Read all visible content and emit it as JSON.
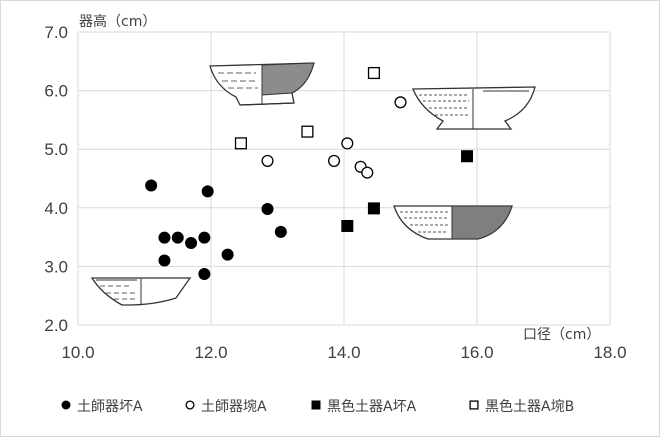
{
  "chart_data": {
    "type": "scatter",
    "xlabel": "口径（cm）",
    "ylabel": "器高（cm）",
    "xlim": [
      10.0,
      18.0
    ],
    "ylim": [
      2.0,
      7.0
    ],
    "x_ticks": [
      "10.0",
      "12.0",
      "14.0",
      "16.0",
      "18.0"
    ],
    "y_ticks": [
      "2.0",
      "3.0",
      "4.0",
      "5.0",
      "6.0",
      "7.0"
    ],
    "grid": true,
    "legend_position": "bottom",
    "series": [
      {
        "name": "土師器坏A",
        "marker": "filled-circle",
        "color": "#000000",
        "points": [
          [
            11.1,
            4.38
          ],
          [
            11.3,
            3.49
          ],
          [
            11.5,
            3.49
          ],
          [
            11.7,
            3.4
          ],
          [
            11.9,
            3.49
          ],
          [
            11.9,
            2.87
          ],
          [
            11.3,
            3.1
          ],
          [
            11.95,
            4.28
          ],
          [
            12.25,
            3.2
          ],
          [
            12.85,
            3.98
          ],
          [
            13.05,
            3.59
          ]
        ]
      },
      {
        "name": "土師器埦A",
        "marker": "open-circle",
        "color": "#000000",
        "points": [
          [
            12.85,
            4.8
          ],
          [
            13.85,
            4.8
          ],
          [
            14.05,
            5.1
          ],
          [
            14.25,
            4.7
          ],
          [
            14.35,
            4.6
          ],
          [
            14.85,
            5.8
          ]
        ]
      },
      {
        "name": "黒色土器A坏A",
        "marker": "filled-square",
        "color": "#000000",
        "points": [
          [
            14.05,
            3.69
          ],
          [
            14.45,
            3.99
          ],
          [
            15.85,
            4.88
          ]
        ]
      },
      {
        "name": "黒色土器A埦B",
        "marker": "open-square",
        "color": "#000000",
        "points": [
          [
            12.45,
            5.1
          ],
          [
            13.45,
            5.3
          ],
          [
            14.45,
            6.3
          ]
        ]
      }
    ]
  }
}
